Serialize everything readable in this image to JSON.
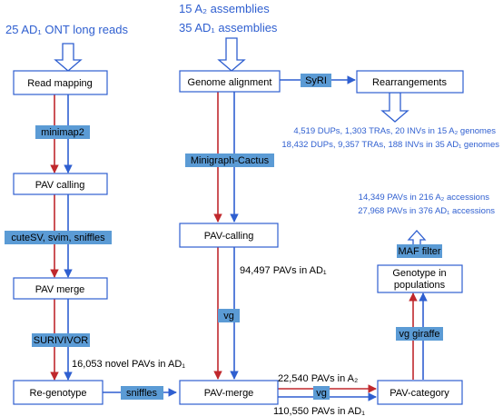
{
  "headers": {
    "left_reads": "25 AD₁ ONT long reads",
    "a2_assemblies": "15 A₂ assemblies",
    "ad1_assemblies": "35 AD₁ assemblies"
  },
  "boxes": {
    "read_mapping": "Read mapping",
    "pav_calling_left": "PAV calling",
    "pav_merge_left": "PAV merge",
    "re_genotype": "Re-genotype",
    "genome_alignment": "Genome alignment",
    "rearrangements": "Rearrangements",
    "pav_calling_mid": "PAV-calling",
    "pav_merge_mid": "PAV-merge",
    "pav_category": "PAV-category",
    "genotype_line1": "Genotype in",
    "genotype_line2": "populations"
  },
  "tools": {
    "minimap2": "minimap2",
    "callers": "cuteSV, svim, sniffles",
    "survivor": "SURIVIVOR",
    "sniffles": "sniffles",
    "syri": "SyRI",
    "minigraph": "Minigraph-Cactus",
    "vg_mid": "vg",
    "vg_bottom": "vg",
    "vg_giraffe": "vg giraffe",
    "maf_filter": "MAF filter"
  },
  "annotations": {
    "rearr_a2": "4,519 DUPs, 1,303 TRAs, 20 INVs in 15 A₂ genomes",
    "rearr_ad1": "18,432 DUPs, 9,357 TRAs, 188 INVs in 35 AD₁ genomes",
    "pav_a2_accessions": "14,349 PAVs in 216 A₂ accessions",
    "pav_ad1_accessions": "27,968 PAVs in 376 AD₁ accessions",
    "pavs_ad1_mid": "94,497 PAVs in AD₁",
    "novel_pavs": "16,053 novel PAVs in AD₁",
    "pavs_a2_bottom": "22,540 PAVs in A₂",
    "pavs_ad1_bottom": "110,550 PAVs in AD₁"
  },
  "colors": {
    "red_arrow": "#c0282d",
    "blue_arrow": "#2f5fd0",
    "tool_fill": "#5b9bd5",
    "box_border": "#2f5fd0",
    "blue_text": "#2f5fd0"
  }
}
